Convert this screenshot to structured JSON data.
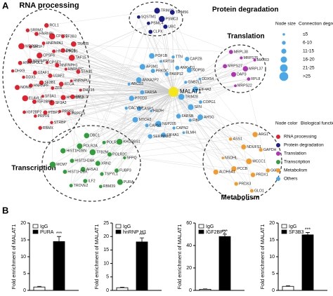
{
  "panels": {
    "a": "A",
    "b": "B"
  },
  "network": {
    "center": "MALAT1",
    "clusters": [
      {
        "name": "RNA processing",
        "color": "#e3202e",
        "nodes": [
          "U2AF2",
          "SF3B1",
          "CPSF1",
          "ZFR",
          "U2AF1",
          "HNRNPH1",
          "SF3A1",
          "CPSF6",
          "RTCA",
          "HNRNPF",
          "HNRNPA2B1",
          "SF3A3",
          "HNRNPM",
          "HNRNPC",
          "IGF2BP3",
          "HNRNPA1",
          "HNRNPA3",
          "DDX5",
          "DKC1",
          "PTBP1",
          "SRSF7",
          "HNRNPU",
          "ELAVL1",
          "CPSF2",
          "PRPF8",
          "HNRNPUL1",
          "TAF15",
          "PRPF6",
          "HNRNPL",
          "FIP1L1",
          "NONO",
          "SF3B3",
          "STRBP",
          "WDR33",
          "STAU1",
          "IGF2BP2",
          "RCL1",
          "PRPF19",
          "DHX9",
          "TRA2B",
          "RBMX",
          "SRRM2",
          "DHX15"
        ]
      },
      {
        "name": "Protein degradation",
        "color": "#1b1d8f",
        "nodes": [
          "PSMC3",
          "PSMC4",
          "TRIM38",
          "UBC",
          "SQSTM1",
          "TRIM56",
          "CLPX"
        ]
      },
      {
        "name": "Translation",
        "color": "#b132b3",
        "nodes": [
          "MRPL37",
          "DAP3",
          "MRPS35",
          "RPL8",
          "MRPS27",
          "MATR3",
          "MRPS22",
          "MRPL38"
        ]
      },
      {
        "name": "Transcription",
        "color": "#2f9e3b",
        "nodes": [
          "XRN2",
          "AHSA1",
          "TFB2M",
          "TSPYL1",
          "HIST1H2AK",
          "POLR2C",
          "ILF2",
          "POLR2A",
          "FUBP3",
          "HIST1H2BK",
          "POLR2E",
          "RBM39",
          "HIST1H2BN",
          "SFPQ",
          "TROVE2",
          "DBC1",
          "PURA",
          "MCM7",
          "KHDRBS1"
        ]
      },
      {
        "name": "Metabolism",
        "color": "#f39b2c",
        "nodes": [
          "MCCC1",
          "PCCB",
          "NDUFS1",
          "PRDX1",
          "NSDHL",
          "GAPDH",
          "PRDX3",
          "ASS1",
          "G6PD",
          "ALDH5A1",
          "ARG1",
          "GLO1"
        ]
      },
      {
        "name": "Others",
        "color": "#4aa8e8",
        "nodes": [
          "TRIM28",
          "HADH",
          "PARP12",
          "FARSB",
          "FARSA",
          "GNB2L1",
          "NUP205",
          "PRKDC",
          "SFN",
          "LASP1",
          "ANKHD1",
          "CAPN2",
          "ANXA2P2",
          "EIF4A3",
          "CAPN1",
          "KRT18",
          "FIBP",
          "PTCD3",
          "NOP58",
          "EIF4A1",
          "AP3M1",
          "COPG1",
          "MTCH2",
          "TTN",
          "BLMH",
          "ABCD3",
          "DDX54",
          "SERPINE2",
          "POF1B",
          "AHSG",
          "CACYBP",
          "CAPZB"
        ]
      }
    ],
    "size_legend": {
      "title": "Node size",
      "subtitle": "Connection degree",
      "items": [
        "≤5",
        "6-10",
        "11-15",
        "16-20",
        "21-25",
        ">25"
      ]
    },
    "color_legend": {
      "title": "Node color",
      "subtitle": "Biological function"
    }
  },
  "chart_data": [
    {
      "type": "bar",
      "ylabel": "Fold enrichment of MALAT1",
      "ylim": [
        0,
        20
      ],
      "yticks": [
        0,
        5,
        10,
        15,
        20
      ],
      "annotation": "***",
      "series": [
        {
          "name": "IgG",
          "color": "#ffffff",
          "values": [
            1
          ],
          "errors": [
            0.2
          ]
        },
        {
          "name": "PURA",
          "color": "#000000",
          "values": [
            14.5
          ],
          "errors": [
            1.5
          ]
        }
      ]
    },
    {
      "type": "bar",
      "ylabel": "Fold enrichment of MALAT1",
      "ylim": [
        0,
        25
      ],
      "yticks": [
        0,
        5,
        10,
        15,
        20,
        25
      ],
      "annotation": "***",
      "series": [
        {
          "name": "IgG",
          "color": "#ffffff",
          "values": [
            1
          ],
          "errors": [
            0.2
          ]
        },
        {
          "name": "hnRNP H1",
          "color": "#000000",
          "values": [
            18
          ],
          "errors": [
            1.5
          ]
        }
      ]
    },
    {
      "type": "bar",
      "ylabel": "Fold enrichment of MALAT1",
      "ylim": [
        0,
        60
      ],
      "yticks": [
        0,
        20,
        40,
        60
      ],
      "annotation": "***",
      "series": [
        {
          "name": "IgG",
          "color": "#ffffff",
          "values": [
            1
          ],
          "errors": [
            0.3
          ]
        },
        {
          "name": "IGF2BP2",
          "color": "#000000",
          "values": [
            48
          ],
          "errors": [
            2
          ]
        }
      ]
    },
    {
      "type": "bar",
      "ylabel": "Fold enrichment of MALAT1",
      "ylim": [
        0,
        20
      ],
      "yticks": [
        0,
        5,
        10,
        15,
        20
      ],
      "annotation": "***",
      "series": [
        {
          "name": "IgG",
          "color": "#ffffff",
          "values": [
            1.2
          ],
          "errors": [
            0.2
          ]
        },
        {
          "name": "SF3B3",
          "color": "#000000",
          "values": [
            16.5
          ],
          "errors": [
            0.7
          ]
        }
      ]
    }
  ]
}
